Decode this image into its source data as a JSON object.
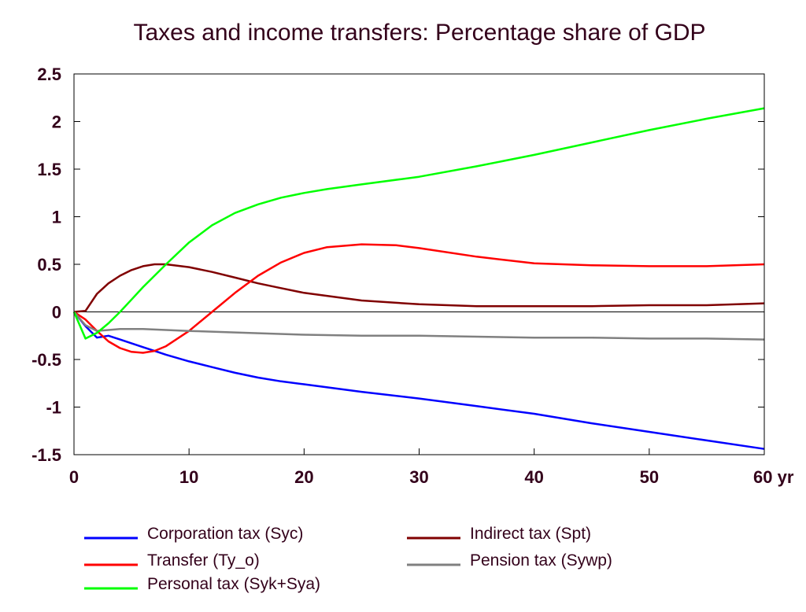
{
  "chart_data": {
    "type": "line",
    "title": "Taxes and income transfers: Percentage share of GDP",
    "xlabel": "",
    "ylabel": "",
    "x_unit_suffix": "yr",
    "xlim": [
      0,
      60
    ],
    "ylim": [
      -1.5,
      2.5
    ],
    "x_ticks": [
      0,
      10,
      20,
      30,
      40,
      50,
      60
    ],
    "x_tick_labels": [
      "0",
      "10",
      "20",
      "30",
      "40",
      "50",
      "60 yr"
    ],
    "y_ticks": [
      -1.5,
      -1,
      -0.5,
      0,
      0.5,
      1,
      1.5,
      2,
      2.5
    ],
    "y_tick_labels": [
      "-1.5",
      "-1",
      "-0.5",
      "0",
      "0.5",
      "1",
      "1.5",
      "2",
      "2.5"
    ],
    "grid": false,
    "zero_line": true,
    "legend_position": "bottom",
    "series": [
      {
        "name": "Corporation tax (Syc)",
        "color": "#0000ff",
        "x": [
          0,
          1,
          2,
          3,
          4,
          5,
          6,
          7,
          8,
          10,
          12,
          14,
          16,
          18,
          20,
          25,
          30,
          35,
          40,
          45,
          50,
          55,
          60
        ],
        "y": [
          0,
          -0.15,
          -0.27,
          -0.25,
          -0.29,
          -0.33,
          -0.37,
          -0.41,
          -0.45,
          -0.52,
          -0.58,
          -0.64,
          -0.69,
          -0.73,
          -0.76,
          -0.84,
          -0.91,
          -0.99,
          -1.07,
          -1.17,
          -1.26,
          -1.35,
          -1.44
        ]
      },
      {
        "name": "Indirect tax (Spt)",
        "color": "#800000",
        "x": [
          0,
          1,
          2,
          3,
          4,
          5,
          6,
          7,
          8,
          10,
          12,
          14,
          16,
          18,
          20,
          25,
          30,
          35,
          40,
          45,
          50,
          55,
          60
        ],
        "y": [
          0,
          0.01,
          0.19,
          0.3,
          0.38,
          0.44,
          0.48,
          0.5,
          0.5,
          0.47,
          0.42,
          0.36,
          0.3,
          0.25,
          0.2,
          0.12,
          0.08,
          0.06,
          0.06,
          0.06,
          0.07,
          0.07,
          0.09
        ]
      },
      {
        "name": "Transfer (Ty_o)",
        "color": "#ff0000",
        "x": [
          0,
          1,
          2,
          3,
          4,
          5,
          6,
          7,
          8,
          10,
          12,
          14,
          16,
          18,
          20,
          22,
          25,
          28,
          30,
          35,
          40,
          45,
          50,
          55,
          60
        ],
        "y": [
          0,
          -0.08,
          -0.2,
          -0.31,
          -0.38,
          -0.42,
          -0.43,
          -0.41,
          -0.36,
          -0.2,
          0.0,
          0.2,
          0.38,
          0.52,
          0.62,
          0.68,
          0.71,
          0.7,
          0.67,
          0.58,
          0.51,
          0.49,
          0.48,
          0.48,
          0.5
        ]
      },
      {
        "name": "Pension tax (Sywp)",
        "color": "#808080",
        "x": [
          0,
          1,
          2,
          3,
          4,
          5,
          6,
          8,
          10,
          15,
          20,
          25,
          30,
          35,
          40,
          45,
          50,
          55,
          60
        ],
        "y": [
          0,
          -0.14,
          -0.2,
          -0.19,
          -0.18,
          -0.18,
          -0.18,
          -0.19,
          -0.2,
          -0.22,
          -0.24,
          -0.25,
          -0.25,
          -0.26,
          -0.27,
          -0.27,
          -0.28,
          -0.28,
          -0.29
        ]
      },
      {
        "name": "Personal tax (Syk+Sya)",
        "color": "#00ff00",
        "x": [
          0,
          1,
          2,
          3,
          4,
          5,
          6,
          7,
          8,
          10,
          12,
          14,
          16,
          18,
          20,
          22,
          25,
          30,
          35,
          40,
          45,
          50,
          55,
          60
        ],
        "y": [
          0,
          -0.28,
          -0.22,
          -0.12,
          0.0,
          0.13,
          0.26,
          0.38,
          0.5,
          0.73,
          0.91,
          1.04,
          1.13,
          1.2,
          1.25,
          1.29,
          1.34,
          1.42,
          1.53,
          1.65,
          1.78,
          1.91,
          2.03,
          2.14
        ]
      }
    ]
  }
}
